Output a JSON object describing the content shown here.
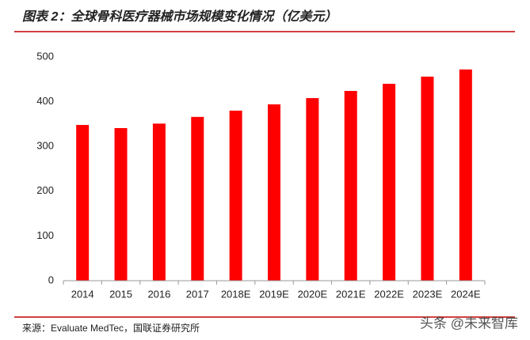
{
  "chart_data": {
    "type": "bar",
    "title": "图表 2：全球骨科医疗器械市场规模变化情况（亿美元）",
    "categories": [
      "2014",
      "2015",
      "2016",
      "2017",
      "2018E",
      "2019E",
      "2020E",
      "2021E",
      "2022E",
      "2023E",
      "2024E"
    ],
    "values": [
      348,
      341,
      351,
      366,
      380,
      394,
      408,
      424,
      440,
      456,
      472
    ],
    "color": "#ff0000",
    "ylim": [
      0,
      500
    ],
    "yticks": [
      0,
      100,
      200,
      300,
      400,
      500
    ],
    "grid": false
  },
  "source": "来源：Evaluate MedTec，国联证券研究所",
  "watermark": "头条 @未来智库"
}
